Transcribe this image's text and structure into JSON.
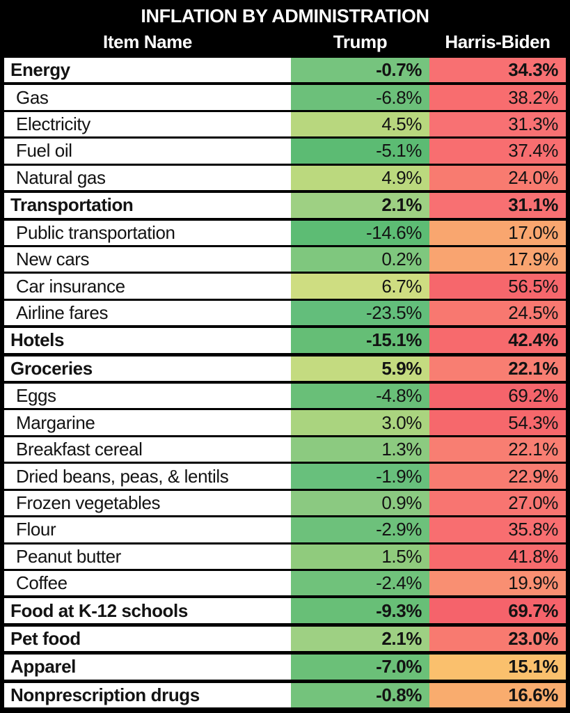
{
  "title": "INFLATION BY ADMINISTRATION",
  "columns": {
    "item": "Item Name",
    "trump": "Trump",
    "harris": "Harris-Biden"
  },
  "colors": {
    "header_bg": "#000000",
    "header_text": "#FFFFFF",
    "row_bg": "#FFFFFF",
    "body_text": "#131313",
    "green_scale_min": "#63BE7B",
    "green_scale_max": "#CEDD81",
    "red_scale_min": "#FAC06D",
    "red_scale_max": "#F5636B"
  },
  "rows": [
    {
      "item": "Energy",
      "category": true,
      "trump": "-0.7%",
      "trump_color": "#76C47E",
      "harris": "34.3%",
      "harris_color": "#F87072"
    },
    {
      "item": "Gas",
      "category": false,
      "trump": "-6.8%",
      "trump_color": "#6CC07A",
      "harris": "38.2%",
      "harris_color": "#F86D6F"
    },
    {
      "item": "Electricity",
      "category": false,
      "trump": "4.5%",
      "trump_color": "#B8D77E",
      "harris": "31.3%",
      "harris_color": "#F87173"
    },
    {
      "item": "Fuel oil",
      "category": false,
      "trump": "-5.1%",
      "trump_color": "#5CBB73",
      "harris": "37.4%",
      "harris_color": "#F86E70"
    },
    {
      "item": "Natural gas",
      "category": false,
      "trump": "4.9%",
      "trump_color": "#BBD97E",
      "harris": "24.0%",
      "harris_color": "#F87B70"
    },
    {
      "item": "Transportation",
      "category": true,
      "trump": "2.1%",
      "trump_color": "#9ED083",
      "harris": "31.1%",
      "harris_color": "#F87072"
    },
    {
      "item": "Public transportation",
      "category": false,
      "trump": "-14.6%",
      "trump_color": "#5DBC74",
      "harris": "17.0%",
      "harris_color": "#F9A66F"
    },
    {
      "item": "New cars",
      "category": false,
      "trump": "0.2%",
      "trump_color": "#7FC77E",
      "harris": "17.9%",
      "harris_color": "#F9A470"
    },
    {
      "item": "Car insurance",
      "category": false,
      "trump": "6.7%",
      "trump_color": "#CEDD81",
      "harris": "56.5%",
      "harris_color": "#F6676C"
    },
    {
      "item": "Airline fares",
      "category": false,
      "trump": "-23.5%",
      "trump_color": "#63BE7B",
      "harris": "24.5%",
      "harris_color": "#F87870"
    },
    {
      "item": "Hotels",
      "category": true,
      "trump": "-15.1%",
      "trump_color": "#65BE76",
      "harris": "42.4%",
      "harris_color": "#F76A6D"
    },
    {
      "item": "Groceries",
      "category": true,
      "trump": "5.9%",
      "trump_color": "#C4DB80",
      "harris": "22.1%",
      "harris_color": "#F87E72"
    },
    {
      "item": "Eggs",
      "category": false,
      "trump": "-4.8%",
      "trump_color": "#69BF78",
      "harris": "69.2%",
      "harris_color": "#F5646B"
    },
    {
      "item": "Margarine",
      "category": false,
      "trump": "3.0%",
      "trump_color": "#AAD47F",
      "harris": "54.3%",
      "harris_color": "#F6686C"
    },
    {
      "item": "Breakfast cereal",
      "category": false,
      "trump": "1.3%",
      "trump_color": "#8CCA80",
      "harris": "22.1%",
      "harris_color": "#F87E72"
    },
    {
      "item": "Dried beans, peas, & lentils",
      "category": false,
      "trump": "-1.9%",
      "trump_color": "#68C07C",
      "harris": "22.9%",
      "harris_color": "#F87C71"
    },
    {
      "item": "Frozen vegetables",
      "category": false,
      "trump": "0.9%",
      "trump_color": "#8BC981",
      "harris": "27.0%",
      "harris_color": "#F87571"
    },
    {
      "item": "Flour",
      "category": false,
      "trump": "-2.9%",
      "trump_color": "#6DC17B",
      "harris": "35.8%",
      "harris_color": "#F86E70"
    },
    {
      "item": "Peanut butter",
      "category": false,
      "trump": "1.5%",
      "trump_color": "#90CB7D",
      "harris": "41.8%",
      "harris_color": "#F76B6D"
    },
    {
      "item": "Coffee",
      "category": false,
      "trump": "-2.4%",
      "trump_color": "#70C27B",
      "harris": "19.9%",
      "harris_color": "#F98F72"
    },
    {
      "item": "Food at K-12 schools",
      "category": true,
      "trump": "-9.3%",
      "trump_color": "#68BF77",
      "harris": "69.7%",
      "harris_color": "#F5636B"
    },
    {
      "item": "Pet food",
      "category": true,
      "trump": "2.1%",
      "trump_color": "#9ED083",
      "harris": "23.0%",
      "harris_color": "#F87A70"
    },
    {
      "item": "Apparel",
      "category": true,
      "trump": "-7.0%",
      "trump_color": "#6BC078",
      "harris": "15.1%",
      "harris_color": "#FAC06D"
    },
    {
      "item": "Nonprescription drugs",
      "category": true,
      "trump": "-0.8%",
      "trump_color": "#74C37C",
      "harris": "16.6%",
      "harris_color": "#F9AC6E"
    }
  ],
  "chart_data": {
    "type": "table",
    "title": "INFLATION BY ADMINISTRATION",
    "columns": [
      "Item Name",
      "Trump",
      "Harris-Biden"
    ],
    "categories": [
      "Energy",
      "Gas",
      "Electricity",
      "Fuel oil",
      "Natural gas",
      "Transportation",
      "Public transportation",
      "New cars",
      "Car insurance",
      "Airline fares",
      "Hotels",
      "Groceries",
      "Eggs",
      "Margarine",
      "Breakfast cereal",
      "Dried beans, peas, & lentils",
      "Frozen vegetables",
      "Flour",
      "Peanut butter",
      "Coffee",
      "Food at K-12 schools",
      "Pet food",
      "Apparel",
      "Nonprescription drugs"
    ],
    "series": [
      {
        "name": "Trump",
        "values": [
          -0.7,
          -6.8,
          4.5,
          -5.1,
          4.9,
          2.1,
          -14.6,
          0.2,
          6.7,
          -23.5,
          -15.1,
          5.9,
          -4.8,
          3.0,
          1.3,
          -1.9,
          0.9,
          -2.9,
          1.5,
          -2.4,
          -9.3,
          2.1,
          -7.0,
          -0.8
        ]
      },
      {
        "name": "Harris-Biden",
        "values": [
          34.3,
          38.2,
          31.3,
          37.4,
          24.0,
          31.1,
          17.0,
          17.9,
          56.5,
          24.5,
          42.4,
          22.1,
          69.2,
          54.3,
          22.1,
          22.9,
          27.0,
          35.8,
          41.8,
          19.9,
          69.7,
          23.0,
          15.1,
          16.6
        ]
      }
    ],
    "unit": "%",
    "layout_hints": "category rows bold; values cell-shaded green (low) to red (high); black grid borders"
  }
}
